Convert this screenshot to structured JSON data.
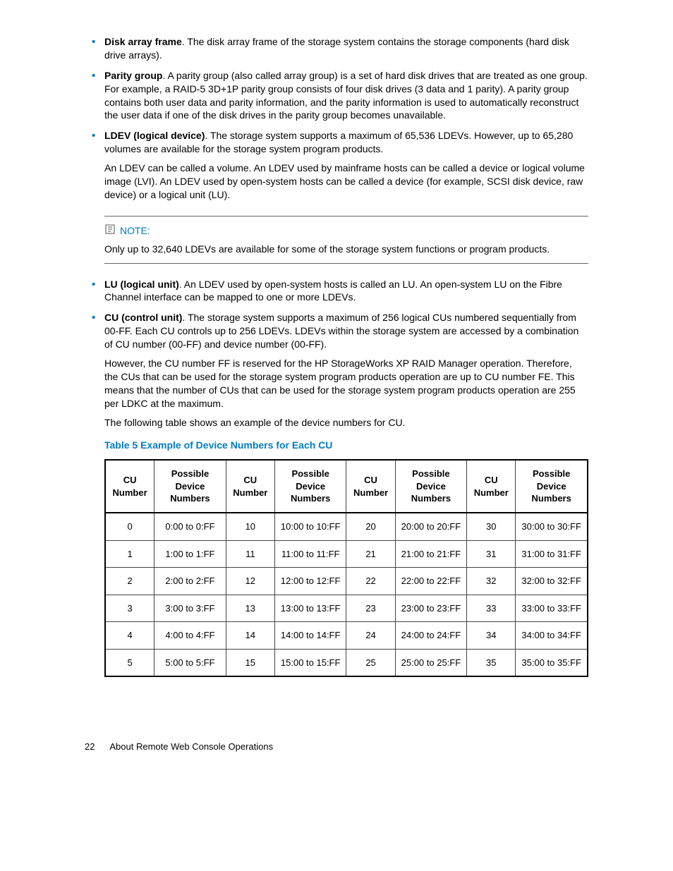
{
  "bullets1": [
    {
      "term": "Disk array frame",
      "text": ". The disk array frame of the storage system contains the storage components (hard disk drive arrays)."
    },
    {
      "term": "Parity group",
      "text": ". A parity group (also called array group) is a set of hard disk drives that are treated as one group. For example, a RAID-5 3D+1P parity group consists of four disk drives (3 data and 1 parity). A parity group contains both user data and parity information, and the parity information is used to automatically reconstruct the user data if one of the disk drives in the parity group becomes unavailable."
    }
  ],
  "ldev": {
    "term": "LDEV (logical device)",
    "text": ". The storage system supports a maximum of 65,536 LDEVs. However, up to 65,280 volumes are available for the storage system program products.",
    "para": "An LDEV can be called a volume. An LDEV used by mainframe hosts can be called a device or logical volume image (LVI). An LDEV used by open-system hosts can be called a device (for example, SCSI disk device, raw device) or a logical unit (LU)."
  },
  "note": {
    "label": "NOTE:",
    "body": "Only up to 32,640 LDEVs are available for some of the storage system functions or program products."
  },
  "bullets2": [
    {
      "term": "LU (logical unit)",
      "text": ". An LDEV used by open-system hosts is called an LU. An open-system LU on the Fibre Channel interface can be mapped to one or more LDEVs."
    }
  ],
  "cu": {
    "term": "CU (control unit)",
    "text": ". The storage system supports a maximum of 256 logical CUs numbered sequentially from 00-FF. Each CU controls up to 256 LDEVs. LDEVs within the storage system are accessed by a combination of CU number (00-FF) and device number (00-FF).",
    "para1": "However, the CU number FF is reserved for the HP StorageWorks XP RAID Manager operation. Therefore, the CUs that can be used for the storage system program products operation are up to CU number FE. This means that the number of CUs that can be used for the storage system program products operation are 255 per LDKC at the maximum.",
    "para2": "The following table shows an example of the device numbers for CU."
  },
  "table": {
    "caption": "Table 5 Example of Device Numbers for Each CU",
    "headers": {
      "cu": "CU Number",
      "dev": "Possible Device Numbers"
    },
    "rows": [
      [
        "0",
        "0:00 to 0:FF",
        "10",
        "10:00 to 10:FF",
        "20",
        "20:00 to 20:FF",
        "30",
        "30:00 to 30:FF"
      ],
      [
        "1",
        "1:00 to 1:FF",
        "11",
        "11:00 to 11:FF",
        "21",
        "21:00 to 21:FF",
        "31",
        "31:00 to 31:FF"
      ],
      [
        "2",
        "2:00 to 2:FF",
        "12",
        "12:00 to 12:FF",
        "22",
        "22:00 to 22:FF",
        "32",
        "32:00 to 32:FF"
      ],
      [
        "3",
        "3:00 to 3:FF",
        "13",
        "13:00 to 13:FF",
        "23",
        "23:00 to 23:FF",
        "33",
        "33:00 to 33:FF"
      ],
      [
        "4",
        "4:00 to 4:FF",
        "14",
        "14:00 to 14:FF",
        "24",
        "24:00 to 24:FF",
        "34",
        "34:00 to 34:FF"
      ],
      [
        "5",
        "5:00 to 5:FF",
        "15",
        "15:00 to 15:FF",
        "25",
        "25:00 to 25:FF",
        "35",
        "35:00 to 35:FF"
      ]
    ]
  },
  "footer": {
    "page": "22",
    "title": "About Remote Web Console Operations"
  },
  "colors": {
    "accent": "#007cc1",
    "border": "#444",
    "text": "#000"
  }
}
